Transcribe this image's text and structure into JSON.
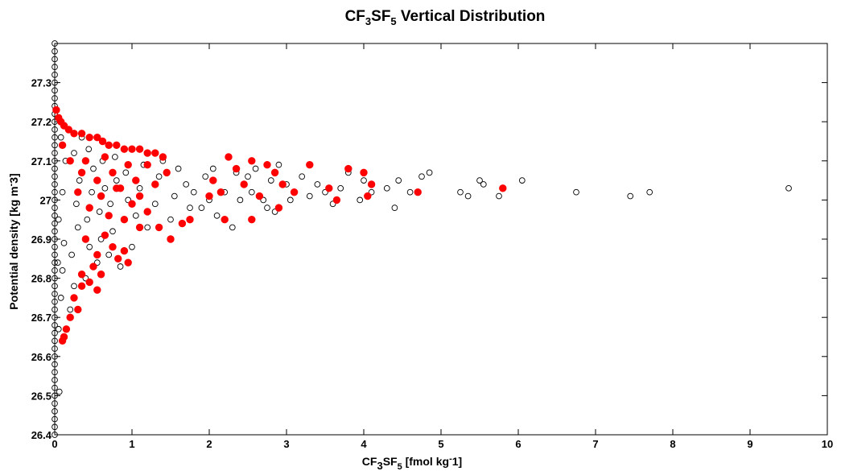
{
  "chart_data": {
    "type": "scatter",
    "title": {
      "pre": "CF",
      "sub1": "3",
      "mid": "SF",
      "sub2": "5",
      "post": " Vertical Distribution"
    },
    "xlabel": {
      "pre": "CF",
      "sub1": "3",
      "mid": "SF",
      "sub2": "5",
      "post": " [fmol kg",
      "sup": "-",
      "post2": "1]"
    },
    "ylabel": {
      "pre": "Potential density [kg m",
      "sup": "-",
      "post": "3]"
    },
    "xlim": [
      0,
      10
    ],
    "ylim": [
      26.4,
      27.4
    ],
    "xticks": [
      "0",
      "1",
      "2",
      "3",
      "4",
      "5",
      "6",
      "7",
      "8",
      "9",
      "10"
    ],
    "yticks": [
      "26.4",
      "26.5",
      "26.6",
      "26.7",
      "26.8",
      "26.9",
      "27",
      "27.1",
      "27.2",
      "27.3"
    ],
    "grid": false,
    "colors": {
      "open_marker_edge": "#000000",
      "filled_marker": "#ff0000"
    },
    "series": [
      {
        "marker": "open-circle",
        "points": [
          [
            0,
            26.4
          ],
          [
            0,
            26.42
          ],
          [
            0,
            26.44
          ],
          [
            0,
            26.46
          ],
          [
            0,
            26.48
          ],
          [
            0,
            26.5
          ],
          [
            0,
            26.52
          ],
          [
            0,
            26.54
          ],
          [
            0,
            26.56
          ],
          [
            0,
            26.58
          ],
          [
            0,
            26.6
          ],
          [
            0,
            26.62
          ],
          [
            0,
            26.64
          ],
          [
            0,
            26.66
          ],
          [
            0,
            26.68
          ],
          [
            0,
            26.7
          ],
          [
            0,
            26.72
          ],
          [
            0,
            26.74
          ],
          [
            0,
            26.76
          ],
          [
            0,
            26.78
          ],
          [
            0,
            26.8
          ],
          [
            0,
            26.82
          ],
          [
            0,
            26.84
          ],
          [
            0,
            26.86
          ],
          [
            0,
            26.88
          ],
          [
            0,
            26.9
          ],
          [
            0,
            26.92
          ],
          [
            0,
            26.94
          ],
          [
            0,
            26.96
          ],
          [
            0,
            26.98
          ],
          [
            0,
            27.0
          ],
          [
            0,
            27.02
          ],
          [
            0,
            27.04
          ],
          [
            0,
            27.06
          ],
          [
            0,
            27.08
          ],
          [
            0,
            27.1
          ],
          [
            0,
            27.12
          ],
          [
            0,
            27.14
          ],
          [
            0,
            27.16
          ],
          [
            0,
            27.18
          ],
          [
            0,
            27.2
          ],
          [
            0,
            27.22
          ],
          [
            0,
            27.24
          ],
          [
            0,
            27.26
          ],
          [
            0,
            27.28
          ],
          [
            0,
            27.3
          ],
          [
            0,
            27.32
          ],
          [
            0,
            27.34
          ],
          [
            0,
            27.36
          ],
          [
            0,
            27.38
          ],
          [
            0,
            27.4
          ],
          [
            0.06,
            26.51
          ],
          [
            0.05,
            26.67
          ],
          [
            0.08,
            26.75
          ],
          [
            0.04,
            26.84
          ],
          [
            0.1,
            26.82
          ],
          [
            0.12,
            26.89
          ],
          [
            0.05,
            26.95
          ],
          [
            0.1,
            27.02
          ],
          [
            0.14,
            27.1
          ],
          [
            0.08,
            27.16
          ],
          [
            0.2,
            26.72
          ],
          [
            0.25,
            26.78
          ],
          [
            0.22,
            26.86
          ],
          [
            0.3,
            26.93
          ],
          [
            0.28,
            26.99
          ],
          [
            0.32,
            27.05
          ],
          [
            0.25,
            27.12
          ],
          [
            0.35,
            27.16
          ],
          [
            0.4,
            26.8
          ],
          [
            0.45,
            26.88
          ],
          [
            0.42,
            26.95
          ],
          [
            0.48,
            27.02
          ],
          [
            0.5,
            27.08
          ],
          [
            0.44,
            27.13
          ],
          [
            0.55,
            26.84
          ],
          [
            0.6,
            26.9
          ],
          [
            0.58,
            26.97
          ],
          [
            0.65,
            27.03
          ],
          [
            0.62,
            27.1
          ],
          [
            0.7,
            26.86
          ],
          [
            0.75,
            26.92
          ],
          [
            0.72,
            26.99
          ],
          [
            0.8,
            27.05
          ],
          [
            0.78,
            27.11
          ],
          [
            0.85,
            26.83
          ],
          [
            0.9,
            26.95
          ],
          [
            0.95,
            27.0
          ],
          [
            0.92,
            27.07
          ],
          [
            1.0,
            26.88
          ],
          [
            1.05,
            26.96
          ],
          [
            1.1,
            27.03
          ],
          [
            1.15,
            27.09
          ],
          [
            1.2,
            26.93
          ],
          [
            1.3,
            26.99
          ],
          [
            1.35,
            27.06
          ],
          [
            1.4,
            27.1
          ],
          [
            1.5,
            26.95
          ],
          [
            1.55,
            27.01
          ],
          [
            1.6,
            27.08
          ],
          [
            1.7,
            27.04
          ],
          [
            1.75,
            26.98
          ],
          [
            1.8,
            27.02
          ],
          [
            1.9,
            26.98
          ],
          [
            1.95,
            27.06
          ],
          [
            2.0,
            27.0
          ],
          [
            2.05,
            27.08
          ],
          [
            2.1,
            26.96
          ],
          [
            2.2,
            27.02
          ],
          [
            2.3,
            26.93
          ],
          [
            2.35,
            27.07
          ],
          [
            2.4,
            27.0
          ],
          [
            2.5,
            27.06
          ],
          [
            2.55,
            27.02
          ],
          [
            2.6,
            27.08
          ],
          [
            2.7,
            27.0
          ],
          [
            2.75,
            26.98
          ],
          [
            2.8,
            27.05
          ],
          [
            2.85,
            26.97
          ],
          [
            2.9,
            27.09
          ],
          [
            3.0,
            27.04
          ],
          [
            3.05,
            27.0
          ],
          [
            3.2,
            27.06
          ],
          [
            3.3,
            27.01
          ],
          [
            3.4,
            27.04
          ],
          [
            3.5,
            27.02
          ],
          [
            3.6,
            26.99
          ],
          [
            3.7,
            27.03
          ],
          [
            3.8,
            27.07
          ],
          [
            3.95,
            27.0
          ],
          [
            4.0,
            27.05
          ],
          [
            4.1,
            27.02
          ],
          [
            4.3,
            27.03
          ],
          [
            4.4,
            26.98
          ],
          [
            4.45,
            27.05
          ],
          [
            4.6,
            27.02
          ],
          [
            4.75,
            27.06
          ],
          [
            4.85,
            27.07
          ],
          [
            5.25,
            27.02
          ],
          [
            5.35,
            27.01
          ],
          [
            5.5,
            27.05
          ],
          [
            5.55,
            27.04
          ],
          [
            5.75,
            27.01
          ],
          [
            6.05,
            27.05
          ],
          [
            6.75,
            27.02
          ],
          [
            7.45,
            27.01
          ],
          [
            7.7,
            27.02
          ],
          [
            9.5,
            27.03
          ]
        ]
      },
      {
        "marker": "filled-circle",
        "points": [
          [
            0.02,
            27.23
          ],
          [
            0.05,
            27.21
          ],
          [
            0.08,
            27.2
          ],
          [
            0.12,
            27.19
          ],
          [
            0.18,
            27.18
          ],
          [
            0.25,
            27.17
          ],
          [
            0.35,
            27.17
          ],
          [
            0.45,
            27.16
          ],
          [
            0.55,
            27.16
          ],
          [
            0.62,
            27.15
          ],
          [
            0.7,
            27.14
          ],
          [
            0.8,
            27.14
          ],
          [
            0.9,
            27.13
          ],
          [
            1.0,
            27.13
          ],
          [
            1.1,
            27.13
          ],
          [
            1.2,
            27.12
          ],
          [
            1.3,
            27.12
          ],
          [
            1.4,
            27.11
          ],
          [
            0.1,
            27.14
          ],
          [
            0.2,
            27.1
          ],
          [
            0.35,
            27.07
          ],
          [
            0.4,
            27.1
          ],
          [
            0.55,
            27.05
          ],
          [
            0.65,
            27.11
          ],
          [
            0.75,
            27.07
          ],
          [
            0.85,
            27.03
          ],
          [
            0.95,
            27.09
          ],
          [
            1.05,
            27.05
          ],
          [
            1.1,
            27.01
          ],
          [
            1.2,
            27.09
          ],
          [
            1.3,
            27.04
          ],
          [
            1.45,
            27.07
          ],
          [
            0.3,
            27.02
          ],
          [
            0.45,
            26.98
          ],
          [
            0.6,
            27.01
          ],
          [
            0.7,
            26.96
          ],
          [
            0.8,
            27.03
          ],
          [
            0.9,
            26.95
          ],
          [
            1.0,
            26.99
          ],
          [
            1.1,
            26.93
          ],
          [
            1.2,
            26.97
          ],
          [
            1.35,
            26.93
          ],
          [
            1.5,
            26.9
          ],
          [
            1.65,
            26.94
          ],
          [
            1.75,
            26.95
          ],
          [
            0.4,
            26.9
          ],
          [
            0.55,
            26.86
          ],
          [
            0.65,
            26.91
          ],
          [
            0.75,
            26.88
          ],
          [
            0.82,
            26.85
          ],
          [
            0.9,
            26.87
          ],
          [
            0.95,
            26.84
          ],
          [
            0.35,
            26.81
          ],
          [
            0.45,
            26.79
          ],
          [
            0.5,
            26.83
          ],
          [
            0.55,
            26.77
          ],
          [
            0.6,
            26.81
          ],
          [
            0.25,
            26.75
          ],
          [
            0.3,
            26.72
          ],
          [
            0.35,
            26.78
          ],
          [
            0.2,
            26.7
          ],
          [
            0.15,
            26.67
          ],
          [
            0.12,
            26.65
          ],
          [
            0.1,
            26.64
          ],
          [
            2.0,
            27.01
          ],
          [
            2.05,
            27.05
          ],
          [
            2.15,
            27.02
          ],
          [
            2.25,
            27.11
          ],
          [
            2.35,
            27.08
          ],
          [
            2.45,
            27.04
          ],
          [
            2.55,
            27.1
          ],
          [
            2.65,
            27.01
          ],
          [
            2.75,
            27.09
          ],
          [
            2.85,
            27.07
          ],
          [
            2.95,
            27.04
          ],
          [
            3.1,
            27.02
          ],
          [
            3.3,
            27.09
          ],
          [
            3.55,
            27.03
          ],
          [
            3.65,
            27.0
          ],
          [
            3.8,
            27.08
          ],
          [
            4.0,
            27.07
          ],
          [
            4.05,
            27.01
          ],
          [
            4.1,
            27.04
          ],
          [
            2.2,
            26.95
          ],
          [
            2.55,
            26.95
          ],
          [
            2.9,
            26.98
          ],
          [
            4.7,
            27.02
          ],
          [
            5.8,
            27.03
          ]
        ]
      }
    ]
  }
}
